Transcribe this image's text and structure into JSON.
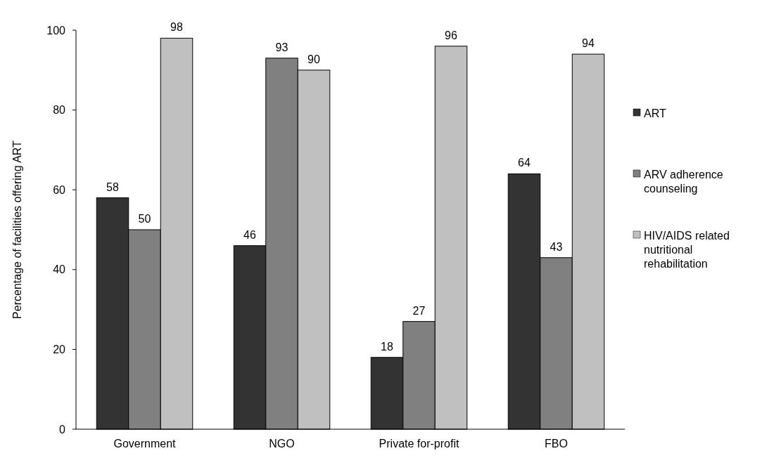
{
  "chart_data": {
    "type": "bar",
    "ylabel": "Percentage of facilities offering ART",
    "categories": [
      "Government",
      "NGO",
      "Private for-profit",
      "FBO"
    ],
    "series": [
      {
        "name": "ART",
        "color": "#333333",
        "values": [
          58,
          46,
          18,
          64
        ]
      },
      {
        "name": "ARV adherence counseling",
        "color": "#808080",
        "values": [
          50,
          93,
          27,
          43
        ]
      },
      {
        "name": "HIV/AIDS related nutritional rehabilitation",
        "color": "#c0c0c0",
        "values": [
          98,
          90,
          96,
          94
        ]
      }
    ],
    "ylim": [
      0,
      100
    ],
    "yticks": [
      0,
      20,
      40,
      60,
      80,
      100
    ],
    "data_labels": true,
    "legend": "right",
    "grid": false
  }
}
